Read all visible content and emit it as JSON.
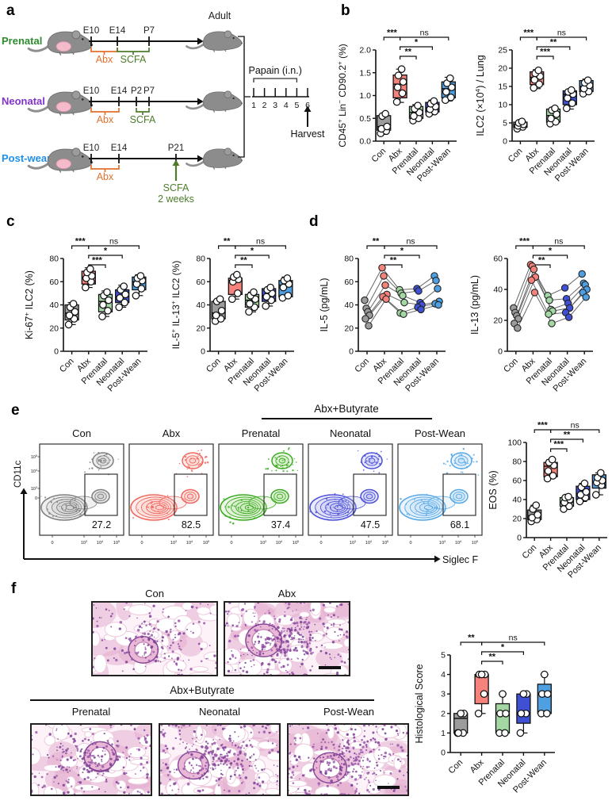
{
  "panel_labels": {
    "a": "a",
    "b": "b",
    "c": "c",
    "d": "d",
    "e": "e",
    "f": "f"
  },
  "groups": [
    "Con",
    "Abx",
    "Prenatal",
    "Neonatal",
    "Post-Wean"
  ],
  "group_colors": {
    "box_fills": [
      "#9c9c9c",
      "#f5837c",
      "#a3d8a4",
      "#4050d5",
      "#4f9fe3"
    ],
    "box_stroke": "#1a1a1a",
    "point_fill": "#ffffff"
  },
  "panel_a": {
    "rows": [
      {
        "name": "Prenatal",
        "color": "#2e8b2e",
        "ticks": [
          "E10",
          "E14",
          "P7"
        ],
        "abx_label": "Abx",
        "scfa_label": "SCFA",
        "scfa_sub": "",
        "scfa_type": "bracket"
      },
      {
        "name": "Neonatal",
        "color": "#8233cc",
        "ticks": [
          "E10",
          "E14",
          "P2",
          "P7"
        ],
        "abx_label": "Abx",
        "scfa_label": "SCFA",
        "scfa_sub": "",
        "scfa_type": "bracket"
      },
      {
        "name": "Post-wean",
        "color": "#1f8fe8",
        "ticks": [
          "E10",
          "E14",
          "P21"
        ],
        "abx_label": "Abx",
        "scfa_label": "SCFA",
        "scfa_sub": "2 weeks",
        "scfa_type": "arrow"
      }
    ],
    "adult_label": "Adult",
    "papain_label": "Papain (i.n.)",
    "papain_days": [
      "1",
      "2",
      "3",
      "4",
      "5",
      "6"
    ],
    "harvest_label": "Harvest",
    "abx_color": "#e2702d",
    "scfa_color": "#4e7c2a"
  },
  "chart_data": [
    {
      "id": "b1",
      "type": "box",
      "ylabel": "CD45^+^ Lin^−^ CD90.2^+^ (%)",
      "ylim": [
        0,
        2
      ],
      "yticks": [
        "0.0",
        "0.5",
        "1.0",
        "1.5",
        "2.0"
      ],
      "boxes": [
        {
          "lo": 0.15,
          "q1": 0.24,
          "med": 0.32,
          "q3": 0.56,
          "hi": 0.6,
          "points": [
            0.17,
            0.22,
            0.27,
            0.32,
            0.55,
            0.6
          ]
        },
        {
          "lo": 0.85,
          "q1": 0.95,
          "med": 1.25,
          "q3": 1.45,
          "hi": 1.58,
          "points": [
            0.86,
            1.05,
            1.18,
            1.3,
            1.44,
            1.58
          ]
        },
        {
          "lo": 0.44,
          "q1": 0.5,
          "med": 0.63,
          "q3": 0.76,
          "hi": 0.8,
          "points": [
            0.45,
            0.5,
            0.55,
            0.63,
            0.71,
            0.78
          ]
        },
        {
          "lo": 0.58,
          "q1": 0.64,
          "med": 0.73,
          "q3": 0.85,
          "hi": 0.9,
          "points": [
            0.6,
            0.65,
            0.7,
            0.76,
            0.82,
            0.88
          ]
        },
        {
          "lo": 0.88,
          "q1": 0.95,
          "med": 1.15,
          "q3": 1.3,
          "hi": 1.4,
          "points": [
            0.9,
            0.96,
            1.08,
            1.18,
            1.27,
            1.38
          ]
        }
      ],
      "brackets": [
        {
          "f": 0,
          "t": 1,
          "l": "***",
          "r": 0
        },
        {
          "f": 1,
          "t": 4,
          "l": "ns",
          "r": 0
        },
        {
          "f": 1,
          "t": 3,
          "l": "*",
          "r": 1
        },
        {
          "f": 1,
          "t": 2,
          "l": "**",
          "r": 2
        }
      ]
    },
    {
      "id": "b2",
      "type": "box",
      "ylabel": "ILC2 (×10^4^) / Lung",
      "ylim": [
        0,
        25
      ],
      "yticks": [
        "0",
        "5",
        "10",
        "15",
        "20",
        "25"
      ],
      "boxes": [
        {
          "lo": 3.2,
          "q1": 3.8,
          "med": 4.5,
          "q3": 5.2,
          "hi": 5.6,
          "points": [
            3.4,
            3.9,
            4.2,
            4.6,
            5.0,
            5.4
          ]
        },
        {
          "lo": 14.4,
          "q1": 15.5,
          "med": 17.5,
          "q3": 19.0,
          "hi": 19.6,
          "points": [
            14.6,
            15.6,
            16.8,
            17.8,
            18.6,
            19.4
          ]
        },
        {
          "lo": 4.6,
          "q1": 5.2,
          "med": 7.0,
          "q3": 8.8,
          "hi": 9.2,
          "points": [
            4.8,
            5.3,
            6.2,
            7.4,
            8.5,
            9.0
          ]
        },
        {
          "lo": 8.8,
          "q1": 10.0,
          "med": 12.8,
          "q3": 13.8,
          "hi": 14.2,
          "points": [
            9.0,
            10.4,
            11.8,
            12.9,
            13.5,
            14.0
          ]
        },
        {
          "lo": 12.8,
          "q1": 13.6,
          "med": 15.0,
          "q3": 16.6,
          "hi": 17.0,
          "points": [
            13.0,
            13.6,
            14.4,
            15.3,
            16.0,
            16.7
          ]
        }
      ],
      "brackets": [
        {
          "f": 0,
          "t": 1,
          "l": "***",
          "r": 0
        },
        {
          "f": 1,
          "t": 4,
          "l": "ns",
          "r": 0
        },
        {
          "f": 1,
          "t": 3,
          "l": "**",
          "r": 1
        },
        {
          "f": 1,
          "t": 2,
          "l": "***",
          "r": 2
        }
      ]
    },
    {
      "id": "c1",
      "type": "box",
      "ylabel": "Ki-67^+^ ILC2 (%)",
      "ylim": [
        0,
        80
      ],
      "yticks": [
        "0",
        "20",
        "40",
        "60",
        "80"
      ],
      "boxes": [
        {
          "lo": 23,
          "q1": 27,
          "med": 33,
          "q3": 40,
          "hi": 42,
          "points": [
            23,
            28,
            31,
            34,
            38,
            41
          ]
        },
        {
          "lo": 55,
          "q1": 58,
          "med": 64,
          "q3": 69,
          "hi": 72,
          "points": [
            55,
            60,
            63,
            65,
            68,
            71
          ]
        },
        {
          "lo": 30,
          "q1": 34,
          "med": 43,
          "q3": 49,
          "hi": 52,
          "points": [
            30,
            35,
            40,
            44,
            48,
            51
          ]
        },
        {
          "lo": 38,
          "q1": 42,
          "med": 47,
          "q3": 53,
          "hi": 57,
          "points": [
            38,
            42,
            46,
            49,
            53,
            56
          ]
        },
        {
          "lo": 48,
          "q1": 53,
          "med": 60,
          "q3": 64,
          "hi": 66,
          "points": [
            48,
            54,
            58,
            61,
            63,
            65
          ]
        }
      ],
      "brackets": [
        {
          "f": 0,
          "t": 1,
          "l": "***",
          "r": 0
        },
        {
          "f": 1,
          "t": 4,
          "l": "ns",
          "r": 0
        },
        {
          "f": 1,
          "t": 3,
          "l": "*",
          "r": 1
        },
        {
          "f": 1,
          "t": 2,
          "l": "***",
          "r": 2
        }
      ]
    },
    {
      "id": "c2",
      "type": "box",
      "ylabel": "IL-5^+^ IL-13^+^ ILC2 (%)",
      "ylim": [
        0,
        80
      ],
      "yticks": [
        "0",
        "20",
        "40",
        "60",
        "80"
      ],
      "boxes": [
        {
          "lo": 26,
          "q1": 28,
          "med": 33,
          "q3": 43,
          "hi": 45,
          "points": [
            26,
            28,
            31,
            35,
            43,
            45
          ]
        },
        {
          "lo": 45,
          "q1": 49,
          "med": 61,
          "q3": 63,
          "hi": 66,
          "points": [
            45,
            50,
            60,
            62,
            64,
            66
          ]
        },
        {
          "lo": 34,
          "q1": 38,
          "med": 44,
          "q3": 49,
          "hi": 51,
          "points": [
            34,
            38,
            41,
            45,
            48,
            51
          ]
        },
        {
          "lo": 39,
          "q1": 43,
          "med": 48,
          "q3": 54,
          "hi": 55,
          "points": [
            39,
            44,
            47,
            50,
            53,
            55
          ]
        },
        {
          "lo": 46,
          "q1": 47,
          "med": 57,
          "q3": 61,
          "hi": 64,
          "points": [
            46,
            48,
            55,
            58,
            61,
            63
          ]
        }
      ],
      "brackets": [
        {
          "f": 0,
          "t": 1,
          "l": "**",
          "r": 0
        },
        {
          "f": 1,
          "t": 4,
          "l": "ns",
          "r": 0
        },
        {
          "f": 1,
          "t": 3,
          "l": "*",
          "r": 1
        },
        {
          "f": 1,
          "t": 2,
          "l": "**",
          "r": 2
        }
      ]
    },
    {
      "id": "d1",
      "type": "paired",
      "ylabel": "IL-5 (pg/mL)",
      "ylim": [
        0,
        80
      ],
      "yticks": [
        "0",
        "20",
        "40",
        "60",
        "80"
      ],
      "mice": [
        [
          44,
          72,
          53,
          54,
          65
        ],
        [
          37,
          65,
          50,
          52,
          61
        ],
        [
          34,
          57,
          48,
          42,
          54
        ],
        [
          31,
          49,
          42,
          40,
          43
        ],
        [
          28,
          47,
          33,
          38,
          41
        ],
        [
          22,
          45,
          32,
          36,
          40
        ]
      ],
      "brackets": [
        {
          "f": 0,
          "t": 1,
          "l": "**",
          "r": 0
        },
        {
          "f": 1,
          "t": 4,
          "l": "ns",
          "r": 0
        },
        {
          "f": 1,
          "t": 3,
          "l": "*",
          "r": 1
        },
        {
          "f": 1,
          "t": 2,
          "l": "**",
          "r": 2
        }
      ]
    },
    {
      "id": "d2",
      "type": "paired",
      "ylabel": "IL-13 (pg/mL)",
      "ylim": [
        0,
        60
      ],
      "yticks": [
        "0",
        "20",
        "40",
        "60"
      ],
      "mice": [
        [
          28,
          56,
          36,
          41,
          50
        ],
        [
          25,
          55,
          33,
          34,
          44
        ],
        [
          23,
          53,
          27,
          31,
          43
        ],
        [
          21,
          48,
          26,
          28,
          40
        ],
        [
          18,
          46,
          24,
          25,
          38
        ],
        [
          15,
          38,
          18,
          22,
          35
        ]
      ],
      "brackets": [
        {
          "f": 0,
          "t": 1,
          "l": "***",
          "r": 0
        },
        {
          "f": 1,
          "t": 4,
          "l": "ns",
          "r": 0
        },
        {
          "f": 1,
          "t": 3,
          "l": "*",
          "r": 1
        },
        {
          "f": 1,
          "t": 2,
          "l": "**",
          "r": 2
        }
      ]
    },
    {
      "id": "eos",
      "type": "box",
      "ylabel": "EOS (%)",
      "ylim": [
        0,
        100
      ],
      "yticks": [
        "0",
        "20",
        "40",
        "60",
        "80",
        "100"
      ],
      "boxes": [
        {
          "lo": 17,
          "q1": 19,
          "med": 23,
          "q3": 29,
          "hi": 34,
          "points": [
            17,
            19,
            21,
            24,
            30,
            34
          ]
        },
        {
          "lo": 62,
          "q1": 64,
          "med": 75,
          "q3": 79,
          "hi": 82,
          "points": [
            62,
            65,
            70,
            76,
            79,
            82
          ]
        },
        {
          "lo": 30,
          "q1": 33,
          "med": 37,
          "q3": 42,
          "hi": 43,
          "points": [
            30,
            33,
            37,
            40,
            42,
            43
          ]
        },
        {
          "lo": 38,
          "q1": 40,
          "med": 46,
          "q3": 54,
          "hi": 57,
          "points": [
            38,
            42,
            45,
            48,
            53,
            57
          ]
        },
        {
          "lo": 45,
          "q1": 52,
          "med": 58,
          "q3": 66,
          "hi": 68,
          "points": [
            45,
            55,
            58,
            60,
            63,
            68
          ]
        }
      ],
      "brackets": [
        {
          "f": 0,
          "t": 1,
          "l": "***",
          "r": 0
        },
        {
          "f": 1,
          "t": 4,
          "l": "ns",
          "r": 0
        },
        {
          "f": 1,
          "t": 3,
          "l": "**",
          "r": 1
        },
        {
          "f": 1,
          "t": 2,
          "l": "***",
          "r": 2
        }
      ]
    },
    {
      "id": "score",
      "type": "box",
      "ylabel": "Histological Score",
      "ylim": [
        0,
        5
      ],
      "yticks": [
        "0",
        "1",
        "2",
        "3",
        "4",
        "5"
      ],
      "boxes": [
        {
          "lo": 1,
          "q1": 1,
          "med": 1.75,
          "q3": 2,
          "hi": 2,
          "points": [
            1,
            1,
            1,
            2,
            2
          ]
        },
        {
          "lo": 2,
          "q1": 2.5,
          "med": 3.9,
          "q3": 4,
          "hi": 4,
          "points": [
            2,
            3,
            4,
            4,
            4
          ]
        },
        {
          "lo": 1,
          "q1": 1,
          "med": 2,
          "q3": 2.5,
          "hi": 3,
          "points": [
            1,
            1,
            2,
            2,
            3
          ]
        },
        {
          "lo": 1,
          "q1": 1.5,
          "med": 2,
          "q3": 3,
          "hi": 3,
          "points": [
            1,
            2,
            2,
            3,
            3
          ]
        },
        {
          "lo": 2,
          "q1": 2,
          "med": 3,
          "q3": 3.5,
          "hi": 4,
          "points": [
            2,
            2,
            3,
            3,
            4
          ]
        }
      ],
      "brackets": [
        {
          "f": 0,
          "t": 1,
          "l": "**",
          "r": 0
        },
        {
          "f": 1,
          "t": 4,
          "l": "ns",
          "r": 0
        },
        {
          "f": 1,
          "t": 3,
          "l": "*",
          "r": 1
        },
        {
          "f": 1,
          "t": 2,
          "l": "**",
          "r": 2
        }
      ]
    }
  ],
  "flow": {
    "header": "Abx+Butyrate",
    "xlabel": "Siglec F",
    "ylabel": "CD11c",
    "xticks": [
      "0",
      "10^3^",
      "10^4^",
      "10^5^"
    ],
    "yticks": [
      "0",
      "10^3^",
      "10^4^",
      "10^5^"
    ],
    "plots": [
      {
        "title": "Con",
        "pct": "27.2",
        "stroke": "#7f7f7f",
        "fill": "#c9c9c9"
      },
      {
        "title": "Abx",
        "pct": "82.5",
        "stroke": "#f0685f",
        "fill": "#fbc2bd"
      },
      {
        "title": "Prenatal",
        "pct": "37.4",
        "stroke": "#3aab20",
        "fill": "#bfe5ad"
      },
      {
        "title": "Neonatal",
        "pct": "47.5",
        "stroke": "#4b50d8",
        "fill": "#b9bcf0"
      },
      {
        "title": "Post-Wean",
        "pct": "68.1",
        "stroke": "#55a8e8",
        "fill": "#bcdcf5"
      }
    ]
  },
  "histology": {
    "header": "Abx+Butyrate",
    "top": [
      {
        "title": "Con",
        "severity": 1,
        "scalebar": false
      },
      {
        "title": "Abx",
        "severity": 4,
        "scalebar": true
      }
    ],
    "bottom": [
      {
        "title": "Prenatal",
        "severity": 2,
        "scalebar": false
      },
      {
        "title": "Neonatal",
        "severity": 3,
        "scalebar": false
      },
      {
        "title": "Post-Wean",
        "severity": 3,
        "scalebar": true
      }
    ]
  }
}
